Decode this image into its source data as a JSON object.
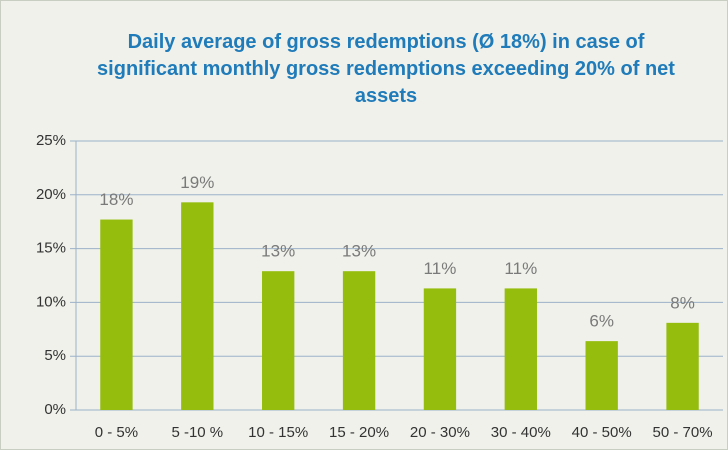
{
  "chart_data": {
    "type": "bar",
    "title": "Daily average of gross redemptions (Ø 18%) in case of significant monthly gross redemptions exceeding 20% of net assets",
    "categories": [
      "0 - 5%",
      "5 -10 %",
      "10 - 15%",
      "15 - 20%",
      "20 - 30%",
      "30 - 40%",
      "40 - 50%",
      "50 - 70%"
    ],
    "values": [
      17.7,
      19.3,
      12.9,
      12.9,
      11.3,
      11.3,
      6.4,
      8.1
    ],
    "value_labels": [
      "18%",
      "19%",
      "13%",
      "13%",
      "11%",
      "11%",
      "6%",
      "8%"
    ],
    "color": "#95bd0e",
    "ylim": [
      0,
      25
    ],
    "yticks": [
      {
        "value": 0,
        "label": "0%"
      },
      {
        "value": 5,
        "label": "5%"
      },
      {
        "value": 10,
        "label": "10%"
      },
      {
        "value": 15,
        "label": "15%"
      },
      {
        "value": 20,
        "label": "20%"
      },
      {
        "value": 25,
        "label": "25%"
      }
    ],
    "grid": true
  }
}
